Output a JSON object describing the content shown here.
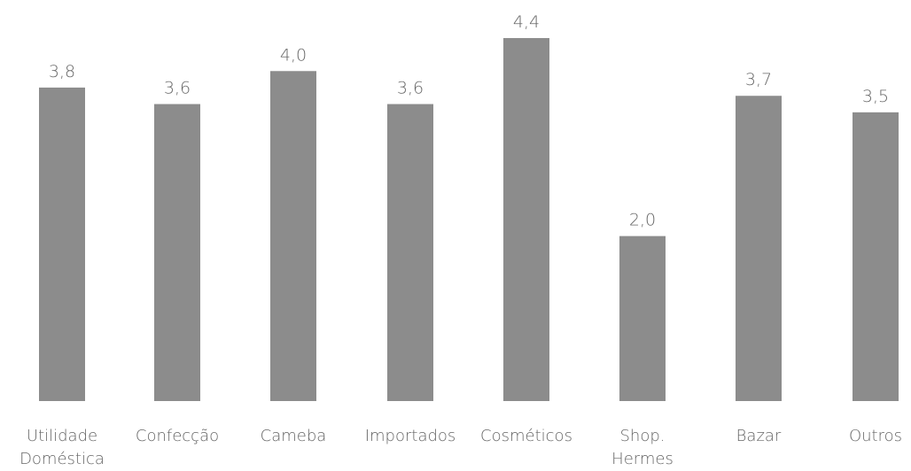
{
  "chart_data": {
    "type": "bar",
    "categories": [
      [
        "Utilidade",
        "Doméstica"
      ],
      [
        "Confecção"
      ],
      [
        "Cameba"
      ],
      [
        "Importados"
      ],
      [
        "Cosméticos"
      ],
      [
        "Shop.",
        "Hermes"
      ],
      [
        "Bazar"
      ],
      [
        "Outros"
      ]
    ],
    "values": [
      3.8,
      3.6,
      4.0,
      3.6,
      4.4,
      2.0,
      3.7,
      3.5
    ],
    "data_labels": [
      "3,8",
      "3,6",
      "4,0",
      "3,6",
      "4,4",
      "2,0",
      "3,7",
      "3,5"
    ],
    "ylim": [
      0,
      4.4
    ],
    "grid": false,
    "colors": {
      "bar": "#8c8c8c",
      "text": "#666666"
    }
  }
}
